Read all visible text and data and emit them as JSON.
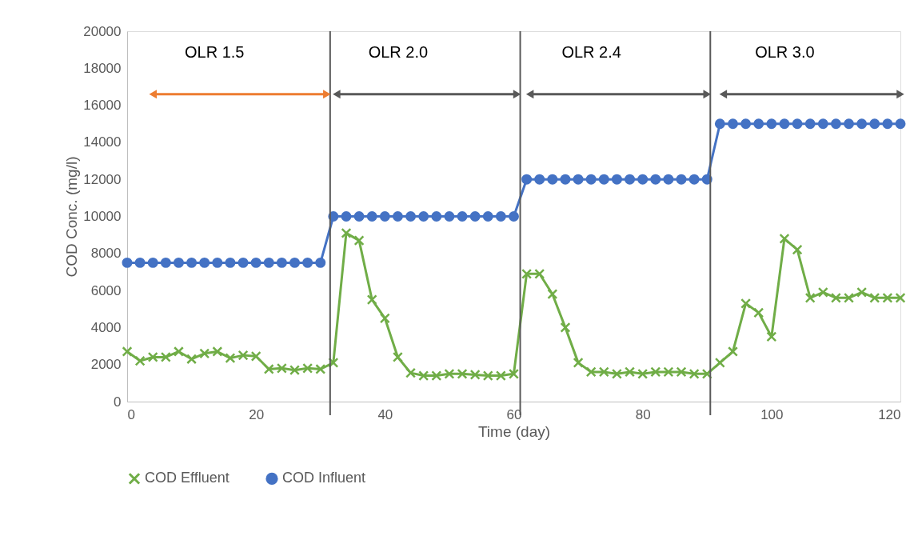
{
  "chart_data": {
    "type": "line",
    "xlabel": "Time (day)",
    "ylabel": "COD Conc. (mg/l)",
    "xlim": [
      0,
      120
    ],
    "xticks": [
      0,
      20,
      40,
      60,
      80,
      100,
      120
    ],
    "ylim": [
      0,
      20000
    ],
    "yticks": [
      0,
      2000,
      4000,
      6000,
      8000,
      10000,
      12000,
      14000,
      16000,
      18000,
      20000
    ],
    "grid": false,
    "legend": "bottom",
    "line_style": "solid",
    "x": [
      0,
      2,
      4,
      6,
      8,
      10,
      12,
      14,
      16,
      18,
      20,
      22,
      24,
      26,
      28,
      30,
      32,
      34,
      36,
      38,
      40,
      42,
      44,
      46,
      48,
      50,
      52,
      54,
      56,
      58,
      60,
      62,
      64,
      66,
      68,
      70,
      72,
      74,
      76,
      78,
      80,
      82,
      84,
      86,
      88,
      90,
      92,
      94,
      96,
      98,
      100,
      102,
      104,
      106,
      108,
      110,
      112,
      114,
      116,
      118,
      120
    ],
    "series": [
      {
        "name": "COD Effluent",
        "color": "#70ad47",
        "marker": "cross",
        "values": [
          2700,
          2200,
          2400,
          2400,
          2700,
          2300,
          2600,
          2700,
          2350,
          2500,
          2450,
          1750,
          1800,
          1700,
          1800,
          1750,
          2100,
          9100,
          8700,
          5500,
          4500,
          2400,
          1550,
          1400,
          1400,
          1500,
          1500,
          1450,
          1400,
          1400,
          1500,
          6900,
          6900,
          5800,
          4000,
          2100,
          1600,
          1600,
          1500,
          1600,
          1500,
          1600,
          1600,
          1600,
          1500,
          1500,
          2100,
          2700,
          5300,
          4800,
          3500,
          8800,
          8200,
          5600,
          5900,
          5600,
          5600,
          5900,
          5600,
          5600,
          5600
        ]
      },
      {
        "name": "COD Influent",
        "color": "#4472c4",
        "marker": "circle",
        "values": [
          7500,
          7500,
          7500,
          7500,
          7500,
          7500,
          7500,
          7500,
          7500,
          7500,
          7500,
          7500,
          7500,
          7500,
          7500,
          7500,
          10000,
          10000,
          10000,
          10000,
          10000,
          10000,
          10000,
          10000,
          10000,
          10000,
          10000,
          10000,
          10000,
          10000,
          10000,
          12000,
          12000,
          12000,
          12000,
          12000,
          12000,
          12000,
          12000,
          12000,
          12000,
          12000,
          12000,
          12000,
          12000,
          12000,
          15000,
          15000,
          15000,
          15000,
          15000,
          15000,
          15000,
          15000,
          15000,
          15000,
          15000,
          15000,
          15000,
          15000,
          15000
        ]
      }
    ],
    "ref_lines": [
      {
        "axis": "x",
        "value": 31.5,
        "color": "#595959"
      },
      {
        "axis": "x",
        "value": 61,
        "color": "#595959"
      },
      {
        "axis": "x",
        "value": 90.5,
        "color": "#595959"
      }
    ],
    "annotations": [
      {
        "text": "OLR 1.5",
        "x": 4,
        "y": 16600
      },
      {
        "text": "OLR 2.0",
        "x": 32.5,
        "y": 16600
      },
      {
        "text": "OLR 2.4",
        "x": 62.5,
        "y": 16600
      },
      {
        "text": "OLR 3.0",
        "x": 92.5,
        "y": 16600
      }
    ]
  }
}
